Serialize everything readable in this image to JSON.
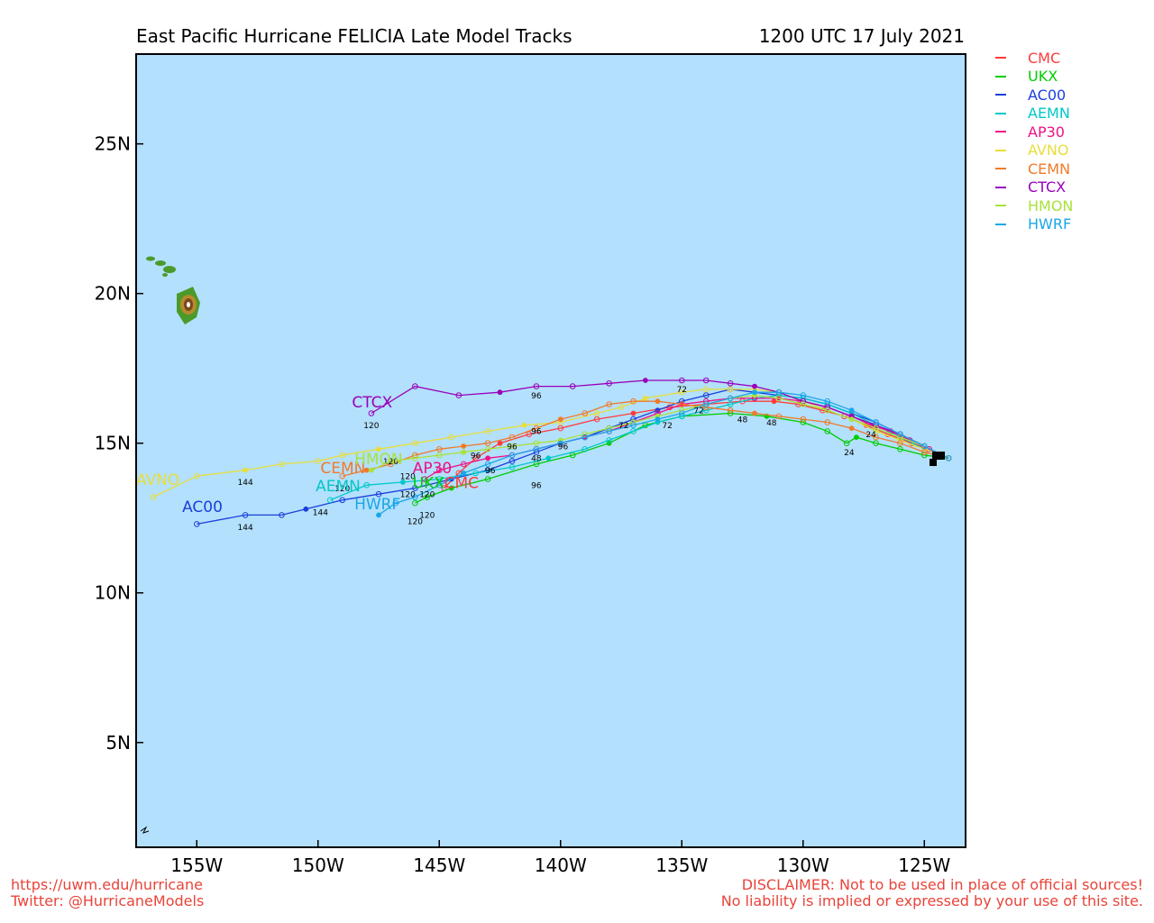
{
  "header": {
    "title": "East Pacific Hurricane FELICIA Late Model Tracks",
    "datetime": "1200 UTC 17 July 2021"
  },
  "map": {
    "lon_range": [
      -157.5,
      -123.3
    ],
    "lat_range": [
      1.5,
      28.0
    ],
    "ocean_color": "#b3e0fc",
    "x_ticks": [
      {
        "lon": -155,
        "label": "155W"
      },
      {
        "lon": -150,
        "label": "150W"
      },
      {
        "lon": -145,
        "label": "145W"
      },
      {
        "lon": -140,
        "label": "140W"
      },
      {
        "lon": -135,
        "label": "135W"
      },
      {
        "lon": -130,
        "label": "130W"
      },
      {
        "lon": -125,
        "label": "125W"
      }
    ],
    "y_ticks": [
      {
        "lat": 25,
        "label": "25N"
      },
      {
        "lat": 20,
        "label": "20N"
      },
      {
        "lat": 15,
        "label": "15N"
      },
      {
        "lat": 10,
        "label": "10N"
      },
      {
        "lat": 5,
        "label": "5N"
      }
    ]
  },
  "models": [
    {
      "name": "CMC",
      "color": "#ff3b3b",
      "points": [
        [
          -124.0,
          14.5
        ],
        [
          -124.8,
          14.8
        ],
        [
          -125.5,
          15.0
        ],
        [
          -126.5,
          15.3
        ],
        [
          -127.4,
          15.6
        ],
        [
          -128.3,
          15.9
        ],
        [
          -129.2,
          16.1
        ],
        [
          -130.2,
          16.3
        ],
        [
          -131.2,
          16.4
        ],
        [
          -132.5,
          16.4
        ],
        [
          -134.0,
          16.3
        ],
        [
          -135.5,
          16.2
        ],
        [
          -137.0,
          16.0
        ],
        [
          -138.5,
          15.8
        ],
        [
          -140.0,
          15.5
        ],
        [
          -141.3,
          15.3
        ],
        [
          -142.5,
          15.0
        ],
        [
          -143.5,
          14.5
        ],
        [
          -144.2,
          14.0
        ],
        [
          -144.8,
          13.5
        ]
      ]
    },
    {
      "name": "UKX",
      "color": "#00cc00",
      "points": [
        [
          -124.0,
          14.5
        ],
        [
          -125.0,
          14.6
        ],
        [
          -126.0,
          14.8
        ],
        [
          -127.0,
          15.0
        ],
        [
          -127.8,
          15.2
        ],
        [
          -128.2,
          15.0
        ],
        [
          -129.0,
          15.4
        ],
        [
          -130.0,
          15.7
        ],
        [
          -131.5,
          15.9
        ],
        [
          -133.0,
          16.0
        ],
        [
          -135.0,
          15.9
        ],
        [
          -136.5,
          15.6
        ],
        [
          -138.0,
          15.0
        ],
        [
          -139.5,
          14.6
        ],
        [
          -141.0,
          14.3
        ],
        [
          -143.0,
          13.8
        ],
        [
          -144.5,
          13.5
        ],
        [
          -145.5,
          13.2
        ],
        [
          -146.0,
          13.0
        ]
      ],
      "label_pos": [
        -146.1,
        13.5
      ]
    },
    {
      "name": "AC00",
      "color": "#1a3fdc",
      "points": [
        [
          -124.0,
          14.5
        ],
        [
          -125.0,
          14.9
        ],
        [
          -126.0,
          15.3
        ],
        [
          -127.0,
          15.7
        ],
        [
          -128.0,
          16.0
        ],
        [
          -129.0,
          16.3
        ],
        [
          -130.0,
          16.5
        ],
        [
          -131.0,
          16.6
        ],
        [
          -132.0,
          16.7
        ],
        [
          -133.0,
          16.8
        ],
        [
          -134.0,
          16.6
        ],
        [
          -135.0,
          16.4
        ],
        [
          -136.0,
          16.1
        ],
        [
          -137.0,
          15.8
        ],
        [
          -138.0,
          15.5
        ],
        [
          -139.0,
          15.2
        ],
        [
          -140.0,
          15.0
        ],
        [
          -141.0,
          14.7
        ],
        [
          -142.0,
          14.4
        ],
        [
          -143.0,
          14.1
        ],
        [
          -144.5,
          13.8
        ],
        [
          -146.0,
          13.5
        ],
        [
          -147.5,
          13.3
        ],
        [
          -149.0,
          13.1
        ],
        [
          -150.5,
          12.8
        ],
        [
          -151.5,
          12.6
        ],
        [
          -153.0,
          12.6
        ],
        [
          -155.0,
          12.3
        ]
      ],
      "label_pos": [
        -155.6,
        12.7
      ]
    },
    {
      "name": "AEMN",
      "color": "#00c8c8",
      "points": [
        [
          -124.0,
          14.5
        ],
        [
          -125.0,
          14.8
        ],
        [
          -126.0,
          15.2
        ],
        [
          -127.0,
          15.6
        ],
        [
          -128.0,
          16.0
        ],
        [
          -129.0,
          16.3
        ],
        [
          -130.0,
          16.5
        ],
        [
          -131.0,
          16.6
        ],
        [
          -132.0,
          16.5
        ],
        [
          -133.0,
          16.3
        ],
        [
          -134.0,
          16.1
        ],
        [
          -135.0,
          15.9
        ],
        [
          -136.0,
          15.7
        ],
        [
          -137.0,
          15.4
        ],
        [
          -138.0,
          15.1
        ],
        [
          -139.0,
          14.8
        ],
        [
          -140.5,
          14.5
        ],
        [
          -142.0,
          14.2
        ],
        [
          -143.5,
          14.0
        ],
        [
          -145.0,
          13.8
        ],
        [
          -146.5,
          13.7
        ],
        [
          -148.0,
          13.6
        ],
        [
          -149.5,
          13.1
        ]
      ],
      "label_pos": [
        -150.1,
        13.4
      ]
    },
    {
      "name": "AP30",
      "color": "#ee1188",
      "points": [
        [
          -124.0,
          14.5
        ],
        [
          -124.8,
          14.8
        ],
        [
          -125.6,
          15.1
        ],
        [
          -126.4,
          15.4
        ],
        [
          -127.2,
          15.6
        ],
        [
          -128.0,
          15.9
        ],
        [
          -129.0,
          16.2
        ],
        [
          -130.0,
          16.4
        ],
        [
          -131.0,
          16.5
        ],
        [
          -132.0,
          16.5
        ],
        [
          -133.0,
          16.5
        ],
        [
          -134.0,
          16.4
        ],
        [
          -135.0,
          16.3
        ],
        [
          -136.0,
          16.0
        ],
        [
          -137.0,
          15.7
        ],
        [
          -138.0,
          15.4
        ],
        [
          -139.0,
          15.2
        ],
        [
          -140.0,
          15.0
        ],
        [
          -141.0,
          14.8
        ],
        [
          -142.0,
          14.6
        ],
        [
          -143.0,
          14.5
        ],
        [
          -144.0,
          14.3
        ],
        [
          -145.0,
          14.1
        ],
        [
          -145.6,
          13.8
        ]
      ],
      "label_pos": [
        -146.1,
        14.0
      ]
    },
    {
      "name": "AVNO",
      "color": "#e8de3a",
      "points": [
        [
          -124.0,
          14.5
        ],
        [
          -125.0,
          14.8
        ],
        [
          -126.0,
          15.1
        ],
        [
          -127.0,
          15.4
        ],
        [
          -128.0,
          15.8
        ],
        [
          -129.0,
          16.1
        ],
        [
          -130.0,
          16.4
        ],
        [
          -131.0,
          16.7
        ],
        [
          -132.0,
          16.8
        ],
        [
          -133.0,
          16.8
        ],
        [
          -134.0,
          16.8
        ],
        [
          -135.0,
          16.7
        ],
        [
          -136.5,
          16.5
        ],
        [
          -137.5,
          16.2
        ],
        [
          -138.5,
          16.0
        ],
        [
          -140.0,
          15.7
        ],
        [
          -141.5,
          15.6
        ],
        [
          -143.0,
          15.4
        ],
        [
          -144.5,
          15.2
        ],
        [
          -146.0,
          15.0
        ],
        [
          -147.5,
          14.8
        ],
        [
          -149.0,
          14.6
        ],
        [
          -150.0,
          14.4
        ],
        [
          -151.5,
          14.3
        ],
        [
          -153.0,
          14.1
        ],
        [
          -155.0,
          13.9
        ],
        [
          -156.8,
          13.2
        ]
      ],
      "label_pos": [
        -157.5,
        13.6
      ]
    },
    {
      "name": "CEMN",
      "color": "#f07a2a",
      "points": [
        [
          -124.0,
          14.5
        ],
        [
          -125.0,
          14.7
        ],
        [
          -126.0,
          15.0
        ],
        [
          -127.0,
          15.2
        ],
        [
          -128.0,
          15.5
        ],
        [
          -129.0,
          15.7
        ],
        [
          -130.0,
          15.8
        ],
        [
          -131.0,
          15.9
        ],
        [
          -132.0,
          16.0
        ],
        [
          -133.0,
          16.1
        ],
        [
          -134.0,
          16.2
        ],
        [
          -135.0,
          16.3
        ],
        [
          -136.0,
          16.4
        ],
        [
          -137.0,
          16.4
        ],
        [
          -138.0,
          16.3
        ],
        [
          -139.0,
          16.0
        ],
        [
          -140.0,
          15.8
        ],
        [
          -141.0,
          15.5
        ],
        [
          -142.0,
          15.2
        ],
        [
          -143.0,
          15.0
        ],
        [
          -144.0,
          14.9
        ],
        [
          -145.0,
          14.8
        ],
        [
          -146.0,
          14.6
        ],
        [
          -147.0,
          14.3
        ],
        [
          -148.0,
          14.1
        ],
        [
          -149.0,
          13.9
        ]
      ],
      "label_pos": [
        -149.9,
        14.0
      ]
    },
    {
      "name": "CTCX",
      "color": "#9900bb",
      "points": [
        [
          -124.0,
          14.5
        ],
        [
          -125.0,
          14.9
        ],
        [
          -126.0,
          15.3
        ],
        [
          -127.0,
          15.6
        ],
        [
          -128.0,
          15.9
        ],
        [
          -129.0,
          16.2
        ],
        [
          -130.0,
          16.4
        ],
        [
          -131.0,
          16.7
        ],
        [
          -132.0,
          16.9
        ],
        [
          -133.0,
          17.0
        ],
        [
          -134.0,
          17.1
        ],
        [
          -135.0,
          17.1
        ],
        [
          -136.5,
          17.1
        ],
        [
          -138.0,
          17.0
        ],
        [
          -139.5,
          16.9
        ],
        [
          -141.0,
          16.9
        ],
        [
          -142.5,
          16.7
        ],
        [
          -144.2,
          16.6
        ],
        [
          -146.0,
          16.9
        ],
        [
          -147.8,
          16.0
        ]
      ],
      "label_pos": [
        -148.6,
        16.2
      ]
    },
    {
      "name": "HMON",
      "color": "#a8e23a",
      "points": [
        [
          -124.0,
          14.5
        ],
        [
          -125.0,
          14.9
        ],
        [
          -126.0,
          15.2
        ],
        [
          -127.0,
          15.5
        ],
        [
          -128.0,
          15.8
        ],
        [
          -129.0,
          16.1
        ],
        [
          -130.0,
          16.3
        ],
        [
          -131.0,
          16.5
        ],
        [
          -132.0,
          16.6
        ],
        [
          -133.0,
          16.5
        ],
        [
          -134.0,
          16.3
        ],
        [
          -135.0,
          16.1
        ],
        [
          -136.0,
          15.9
        ],
        [
          -137.0,
          15.7
        ],
        [
          -138.0,
          15.5
        ],
        [
          -139.0,
          15.3
        ],
        [
          -140.0,
          15.1
        ],
        [
          -141.0,
          15.0
        ],
        [
          -142.0,
          14.9
        ],
        [
          -143.0,
          14.8
        ],
        [
          -144.0,
          14.7
        ],
        [
          -145.0,
          14.6
        ],
        [
          -146.0,
          14.5
        ],
        [
          -147.0,
          14.4
        ],
        [
          -147.8,
          14.1
        ]
      ],
      "label_pos": [
        -148.5,
        14.3
      ]
    },
    {
      "name": "HWRF",
      "color": "#1aa6e8",
      "points": [
        [
          -124.0,
          14.5
        ],
        [
          -125.0,
          14.9
        ],
        [
          -126.0,
          15.3
        ],
        [
          -127.0,
          15.7
        ],
        [
          -128.0,
          16.1
        ],
        [
          -129.0,
          16.4
        ],
        [
          -130.0,
          16.6
        ],
        [
          -131.0,
          16.7
        ],
        [
          -132.0,
          16.7
        ],
        [
          -133.0,
          16.5
        ],
        [
          -134.0,
          16.3
        ],
        [
          -135.0,
          16.0
        ],
        [
          -136.0,
          15.8
        ],
        [
          -137.0,
          15.6
        ],
        [
          -138.0,
          15.4
        ],
        [
          -139.0,
          15.2
        ],
        [
          -140.0,
          15.0
        ],
        [
          -141.0,
          14.8
        ],
        [
          -142.0,
          14.6
        ],
        [
          -143.0,
          14.3
        ],
        [
          -144.0,
          14.0
        ],
        [
          -145.0,
          13.6
        ],
        [
          -146.0,
          13.2
        ],
        [
          -146.8,
          13.0
        ],
        [
          -147.5,
          12.6
        ]
      ],
      "label_pos": [
        -148.5,
        12.8
      ]
    }
  ],
  "hour_labels": [
    {
      "text": "24",
      "lon": -128.1,
      "lat": 14.6
    },
    {
      "text": "24",
      "lon": -127.2,
      "lat": 15.2
    },
    {
      "text": "48",
      "lon": -132.5,
      "lat": 15.7
    },
    {
      "text": "48",
      "lon": -131.3,
      "lat": 15.6
    },
    {
      "text": "48",
      "lon": -141.0,
      "lat": 14.4
    },
    {
      "text": "72",
      "lon": -135.0,
      "lat": 16.7
    },
    {
      "text": "72",
      "lon": -135.6,
      "lat": 15.5
    },
    {
      "text": "72",
      "lon": -134.3,
      "lat": 16.0
    },
    {
      "text": "72",
      "lon": -137.4,
      "lat": 15.5
    },
    {
      "text": "96",
      "lon": -141.0,
      "lat": 16.5
    },
    {
      "text": "96",
      "lon": -141.0,
      "lat": 15.3
    },
    {
      "text": "96",
      "lon": -142.0,
      "lat": 14.8
    },
    {
      "text": "96",
      "lon": -143.5,
      "lat": 14.5
    },
    {
      "text": "96",
      "lon": -142.9,
      "lat": 14.0
    },
    {
      "text": "96",
      "lon": -141.0,
      "lat": 13.5
    },
    {
      "text": "96",
      "lon": -139.9,
      "lat": 14.8
    },
    {
      "text": "120",
      "lon": -147.8,
      "lat": 15.5
    },
    {
      "text": "120",
      "lon": -147.0,
      "lat": 14.3
    },
    {
      "text": "120",
      "lon": -146.3,
      "lat": 13.8
    },
    {
      "text": "120",
      "lon": -146.3,
      "lat": 13.2
    },
    {
      "text": "120",
      "lon": -145.5,
      "lat": 13.2
    },
    {
      "text": "120",
      "lon": -146.0,
      "lat": 12.3
    },
    {
      "text": "120",
      "lon": -145.5,
      "lat": 12.5
    },
    {
      "text": "120",
      "lon": -149.0,
      "lat": 13.4
    },
    {
      "text": "144",
      "lon": -153.0,
      "lat": 12.1
    },
    {
      "text": "144",
      "lon": -149.9,
      "lat": 12.6
    },
    {
      "text": "144",
      "lon": -153.0,
      "lat": 13.6
    }
  ],
  "legend_entries": [
    "CMC",
    "UKX",
    "AC00",
    "AEMN",
    "AP30",
    "AVNO",
    "CEMN",
    "CTCX",
    "HMON",
    "HWRF"
  ],
  "footer": {
    "url": "https://uwm.edu/hurricane",
    "twitter": "Twitter: @HurricaneModels",
    "disclaimer_line1": "DISCLAIMER: Not to be used in place of official sources!",
    "disclaimer_line2": "No liability is implied or expressed by your use of this site."
  }
}
